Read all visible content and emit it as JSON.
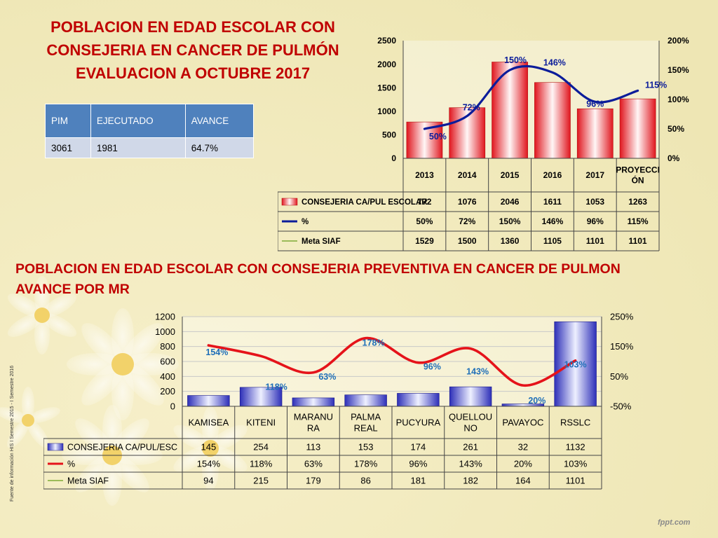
{
  "titles": {
    "top": [
      "POBLACION EN EDAD ESCOLAR CON",
      "CONSEJERIA EN CANCER DE PULMÓN",
      "EVALUACION A OCTUBRE 2017"
    ],
    "bottom": [
      "POBLACION EN EDAD ESCOLAR CON CONSEJERIA PREVENTIVA EN CANCER DE PULMON",
      "AVANCE POR MR"
    ]
  },
  "summary_table": {
    "headers": [
      "PIM",
      "EJECUTADO",
      "AVANCE"
    ],
    "row": [
      "3061",
      "1981",
      "64.7%"
    ]
  },
  "side_note": "Fuente de información HIS I Semestre 2015 - I Semestre 2016",
  "logo": "fppt.com",
  "colors": {
    "title": "#C00000",
    "table_header": "#4F81BD",
    "table_cell": "#D0D8E8",
    "bar1": "#E0161E",
    "line1": "#0B1C9A",
    "bar2": "#2D2FB8",
    "line2": "#E5131A",
    "meta": "#9BBB59",
    "percent_label": "#1F6FB8"
  },
  "chart_data": [
    {
      "type": "bar",
      "categories": [
        "2013",
        "2014",
        "2015",
        "2016",
        "2017",
        "PROYECCIÓN"
      ],
      "category_lines": [
        [
          "2013"
        ],
        [
          "2014"
        ],
        [
          "2015"
        ],
        [
          "2016"
        ],
        [
          "2017"
        ],
        [
          "PROYECCI",
          "ÓN"
        ]
      ],
      "series": [
        {
          "name": "CONSEJERIA CA/PUL ESCOLAR",
          "type": "bar",
          "axis": "left",
          "values": [
            772,
            1076,
            2046,
            1611,
            1053,
            1263
          ],
          "labels": [
            "772",
            "1076",
            "2046",
            "1611",
            "1053",
            "1263"
          ]
        },
        {
          "name": "%",
          "type": "line",
          "axis": "right",
          "values": [
            50,
            72,
            150,
            146,
            96,
            115
          ],
          "labels": [
            "50%",
            "72%",
            "150%",
            "146%",
            "96%",
            "115%"
          ]
        },
        {
          "name": "Meta SIAF",
          "type": "table-only",
          "values": [
            1529,
            1500,
            1360,
            1105,
            1101,
            1101
          ],
          "labels": [
            "1529",
            "1500",
            "1360",
            "1105",
            "1101",
            "1101"
          ]
        }
      ],
      "y_left": {
        "min": 0,
        "max": 2500,
        "ticks": [
          "0",
          "500",
          "1000",
          "1500",
          "2000",
          "2500"
        ]
      },
      "y_right": {
        "min": 0,
        "max": 200,
        "ticks": [
          "0%",
          "50%",
          "100%",
          "150%",
          "200%"
        ]
      },
      "grid": false,
      "legend": "data-table"
    },
    {
      "type": "bar",
      "categories": [
        "KAMISEA",
        "KITENI",
        "MARANURA",
        "PALMA REAL",
        "PUCYURA",
        "QUELLOUNO",
        "PAVAYOC",
        "RSSLC"
      ],
      "category_lines": [
        [
          "KAMISEA"
        ],
        [
          "KITENI"
        ],
        [
          "MARANU",
          "RA"
        ],
        [
          "PALMA",
          "REAL"
        ],
        [
          "PUCYURA"
        ],
        [
          "QUELLOU",
          "NO"
        ],
        [
          "PAVAYOC"
        ],
        [
          "RSSLC"
        ]
      ],
      "series": [
        {
          "name": "CONSEJERIA CA/PUL/ESC",
          "type": "bar",
          "axis": "left",
          "values": [
            145,
            254,
            113,
            153,
            174,
            261,
            32,
            1132
          ],
          "labels": [
            "145",
            "254",
            "113",
            "153",
            "174",
            "261",
            "32",
            "1132"
          ]
        },
        {
          "name": "%",
          "type": "line",
          "axis": "right",
          "values": [
            154,
            118,
            63,
            178,
            96,
            143,
            20,
            103
          ],
          "labels": [
            "154%",
            "118%",
            "63%",
            "178%",
            "96%",
            "143%",
            "20%",
            "103%"
          ]
        },
        {
          "name": "Meta SIAF",
          "type": "table-only",
          "values": [
            94,
            215,
            179,
            86,
            181,
            182,
            164,
            1101
          ],
          "labels": [
            "94",
            "215",
            "179",
            "86",
            "181",
            "182",
            "164",
            "1101"
          ]
        }
      ],
      "y_left": {
        "min": 0,
        "max": 1200,
        "ticks": [
          "0",
          "200",
          "400",
          "600",
          "800",
          "1000",
          "1200"
        ]
      },
      "y_right": {
        "min": -50,
        "max": 250,
        "ticks": [
          "-50%",
          "50%",
          "150%",
          "250%"
        ]
      },
      "grid": true,
      "legend": "data-table"
    }
  ]
}
